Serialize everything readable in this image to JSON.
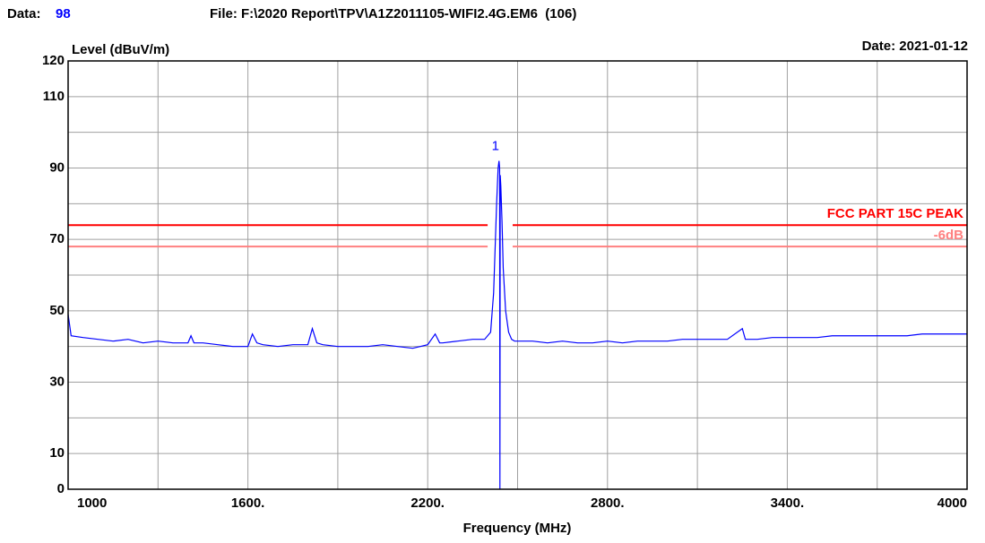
{
  "chart_data": {
    "type": "line",
    "data_caption": "Data:",
    "data_number": 98,
    "file": "File: F:\\2020 Report\\TPV\\A1Z2011105-WIFI2.4G.EM6  (106)",
    "date": "Date: 2021-01-12",
    "ylabel": "Level (dBuV/m)",
    "xlabel": "Frequency (MHz)",
    "xlim": [
      1000,
      4000
    ],
    "ylim": [
      0,
      120
    ],
    "xticks": [
      1000,
      {
        "value": 1600,
        "label": "1600."
      },
      {
        "value": 2200,
        "label": "2200."
      },
      {
        "value": 2800,
        "label": "2800."
      },
      {
        "value": 3400,
        "label": "3400."
      },
      4000
    ],
    "yticks": [
      0,
      10,
      30,
      50,
      70,
      90,
      110,
      120
    ],
    "xgrid": [
      1000,
      1300,
      1600,
      1900,
      2200,
      2500,
      2800,
      3100,
      3400,
      3700,
      4000
    ],
    "ygrid": [
      0,
      10,
      20,
      30,
      40,
      50,
      60,
      70,
      80,
      90,
      100,
      110,
      120
    ],
    "grid_color": "#a0a0a0",
    "trace": {
      "color": "#0000ff",
      "x": [
        1000,
        1010,
        1050,
        1100,
        1150,
        1200,
        1250,
        1300,
        1350,
        1400,
        1410,
        1420,
        1450,
        1500,
        1550,
        1600,
        1615,
        1630,
        1650,
        1700,
        1750,
        1800,
        1815,
        1830,
        1850,
        1900,
        1950,
        2000,
        2050,
        2100,
        2150,
        2200,
        2225,
        2240,
        2250,
        2300,
        2350,
        2390,
        2410,
        2420,
        2430,
        2435,
        2438,
        2440,
        2441,
        2442,
        2444,
        2448,
        2452,
        2460,
        2470,
        2480,
        2490,
        2500,
        2550,
        2600,
        2650,
        2700,
        2750,
        2800,
        2850,
        2900,
        2950,
        3000,
        3050,
        3100,
        3150,
        3200,
        3250,
        3260,
        3300,
        3350,
        3400,
        3450,
        3500,
        3550,
        3600,
        3650,
        3700,
        3750,
        3800,
        3850,
        3900,
        3950,
        4000
      ],
      "values": [
        49,
        43,
        42.5,
        42,
        41.5,
        42,
        41,
        41.5,
        41,
        41,
        43,
        41,
        41,
        40.5,
        40,
        40,
        43.5,
        41,
        40.5,
        40,
        40.5,
        40.5,
        45,
        41,
        40.5,
        40,
        40,
        40,
        40.5,
        40,
        39.5,
        40.5,
        43.5,
        41,
        41,
        41.5,
        42,
        42,
        44,
        55,
        80,
        90,
        92,
        90,
        0,
        88,
        85,
        75,
        62,
        50,
        44,
        42,
        41.5,
        41.5,
        41.5,
        41,
        41.5,
        41,
        41,
        41.5,
        41,
        41.5,
        41.5,
        41.5,
        42,
        42,
        42,
        42,
        45,
        42,
        42,
        42.5,
        42.5,
        42.5,
        42.5,
        43,
        43,
        43,
        43,
        43,
        43,
        43.5,
        43.5,
        43.5,
        43.5
      ]
    },
    "limits": [
      {
        "name": "FCC PART 15C PEAK",
        "color": "#ff0000",
        "value": 74,
        "segments": [
          [
            1000,
            2400
          ],
          [
            2483.5,
            4000
          ]
        ]
      },
      {
        "name": "-6dB",
        "color": "#ff8080",
        "value": 68,
        "segments": [
          [
            1000,
            2400
          ],
          [
            2483.5,
            4000
          ]
        ]
      }
    ],
    "markers": [
      {
        "label": "1",
        "x": 2438,
        "y": 92
      }
    ]
  }
}
